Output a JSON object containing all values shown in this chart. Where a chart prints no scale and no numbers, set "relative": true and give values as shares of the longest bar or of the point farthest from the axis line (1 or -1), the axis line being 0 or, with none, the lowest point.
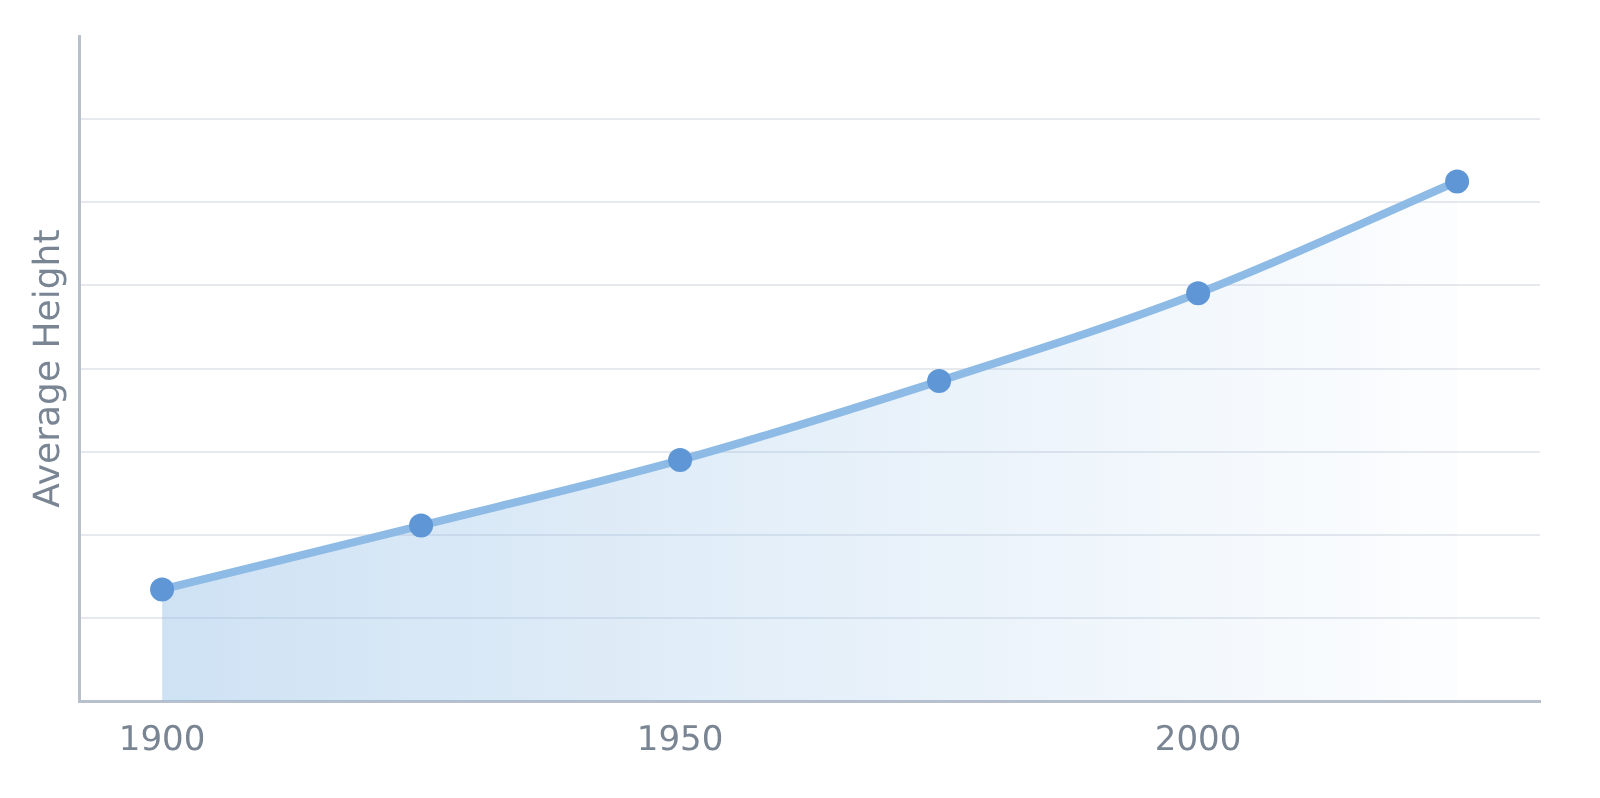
{
  "chart_data": {
    "type": "area",
    "ylabel": "Average Height",
    "relative": true,
    "x": [
      1900,
      1925,
      1950,
      1975,
      2000,
      2025
    ],
    "xlim": [
      1892,
      2033
    ],
    "xticks": [
      1900,
      1950,
      2000
    ],
    "series": [
      {
        "color": "#8dbbe5",
        "values": [
          0.215,
          0.338,
          0.464,
          0.616,
          0.785,
          1
        ]
      }
    ],
    "marker": "circle",
    "grid": "y",
    "legend": false
  }
}
